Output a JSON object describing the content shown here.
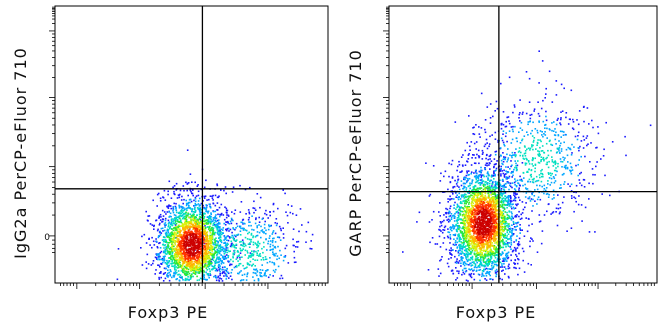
{
  "chart_data": [
    {
      "type": "scatter",
      "xlabel": "Foxp3 PE",
      "ylabel": "IgG2a PerCP-eFluor 710",
      "ytick_labels": [
        "0"
      ],
      "quadrant_gate": {
        "x": 0.54,
        "y": 0.66
      },
      "populations": [
        {
          "cx": 0.5,
          "cy": 0.86,
          "sx": 0.055,
          "sy": 0.07,
          "fraction": 0.82,
          "peak": 1.0
        },
        {
          "cx": 0.7,
          "cy": 0.88,
          "sx": 0.085,
          "sy": 0.075,
          "fraction": 0.18,
          "peak": 0.35
        }
      ]
    },
    {
      "type": "scatter",
      "xlabel": "Foxp3 PE",
      "ylabel": "GARP PerCP-eFluor 710",
      "ytick_labels": [],
      "quadrant_gate": {
        "x": 0.41,
        "y": 0.67
      },
      "populations": [
        {
          "cx": 0.35,
          "cy": 0.78,
          "sx": 0.055,
          "sy": 0.085,
          "fraction": 0.8,
          "peak": 1.0
        },
        {
          "cx": 0.55,
          "cy": 0.55,
          "sx": 0.095,
          "sy": 0.095,
          "fraction": 0.2,
          "peak": 0.35
        }
      ]
    }
  ],
  "colors": {
    "density_scale": [
      "#1a1aff",
      "#00a6ff",
      "#00e0c0",
      "#2ee82e",
      "#d9f20d",
      "#ffb300",
      "#ff3300",
      "#cc0000"
    ],
    "gate_line": "#000000",
    "frame": "#000000"
  }
}
